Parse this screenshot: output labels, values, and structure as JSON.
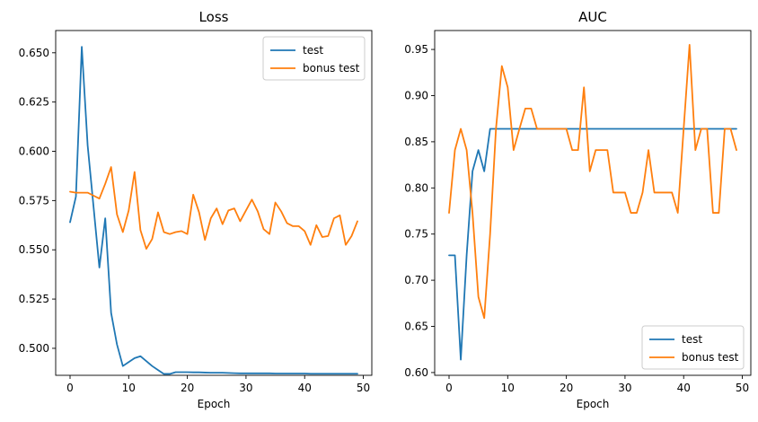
{
  "chart_data": [
    {
      "type": "line",
      "title": "Loss",
      "xlabel": "Epoch",
      "ylabel": "",
      "xlim": [
        -2.45,
        51.45
      ],
      "ylim": [
        0.4863,
        0.6613
      ],
      "xticks": [
        0,
        10,
        20,
        30,
        40,
        50
      ],
      "yticks": [
        0.5,
        0.525,
        0.55,
        0.575,
        0.6,
        0.625,
        0.65
      ],
      "ytick_labels": [
        "0.500",
        "0.525",
        "0.550",
        "0.575",
        "0.600",
        "0.625",
        "0.650"
      ],
      "legend": "top-right",
      "x": [
        0,
        1,
        2,
        3,
        4,
        5,
        6,
        7,
        8,
        9,
        10,
        11,
        12,
        13,
        14,
        15,
        16,
        17,
        18,
        19,
        20,
        21,
        22,
        23,
        24,
        25,
        26,
        27,
        28,
        29,
        30,
        31,
        32,
        33,
        34,
        35,
        36,
        37,
        38,
        39,
        40,
        41,
        42,
        43,
        44,
        45,
        46,
        47,
        48,
        49
      ],
      "series": [
        {
          "name": "test",
          "color": "#1f77b4",
          "values": [
            0.564,
            0.577,
            0.653,
            0.603,
            0.572,
            0.541,
            0.566,
            0.518,
            0.502,
            0.491,
            0.493,
            0.495,
            0.496,
            0.4935,
            0.491,
            0.489,
            0.487,
            0.487,
            0.4879,
            0.4879,
            0.4879,
            0.4878,
            0.4878,
            0.4877,
            0.4876,
            0.4876,
            0.4876,
            0.4875,
            0.4874,
            0.4873,
            0.4873,
            0.4873,
            0.4873,
            0.4873,
            0.4873,
            0.4872,
            0.4872,
            0.4872,
            0.4872,
            0.4872,
            0.4872,
            0.4871,
            0.4871,
            0.4871,
            0.4871,
            0.4871,
            0.4871,
            0.4871,
            0.4871,
            0.4871
          ]
        },
        {
          "name": "bonus test",
          "color": "#ff7f0e",
          "values": [
            0.5795,
            0.579,
            0.579,
            0.579,
            0.5775,
            0.576,
            0.5835,
            0.592,
            0.568,
            0.559,
            0.57,
            0.5895,
            0.56,
            0.5505,
            0.5555,
            0.569,
            0.559,
            0.558,
            0.559,
            0.5595,
            0.558,
            0.578,
            0.569,
            0.555,
            0.566,
            0.571,
            0.563,
            0.57,
            0.571,
            0.5645,
            0.57,
            0.5755,
            0.5695,
            0.5605,
            0.558,
            0.574,
            0.5695,
            0.5635,
            0.562,
            0.562,
            0.5595,
            0.5525,
            0.5625,
            0.5565,
            0.557,
            0.566,
            0.5675,
            0.5525,
            0.557,
            0.5645
          ]
        }
      ]
    },
    {
      "type": "line",
      "title": "AUC",
      "xlabel": "Epoch",
      "ylabel": "",
      "xlim": [
        -2.45,
        51.45
      ],
      "ylim": [
        0.597,
        0.9705
      ],
      "xticks": [
        0,
        10,
        20,
        30,
        40,
        50
      ],
      "yticks": [
        0.6,
        0.65,
        0.7,
        0.75,
        0.8,
        0.85,
        0.9,
        0.95
      ],
      "ytick_labels": [
        "0.60",
        "0.65",
        "0.70",
        "0.75",
        "0.80",
        "0.85",
        "0.90",
        "0.95"
      ],
      "legend": "bottom-right",
      "x": [
        0,
        1,
        2,
        3,
        4,
        5,
        6,
        7,
        8,
        9,
        10,
        11,
        12,
        13,
        14,
        15,
        16,
        17,
        18,
        19,
        20,
        21,
        22,
        23,
        24,
        25,
        26,
        27,
        28,
        29,
        30,
        31,
        32,
        33,
        34,
        35,
        36,
        37,
        38,
        39,
        40,
        41,
        42,
        43,
        44,
        45,
        46,
        47,
        48,
        49
      ],
      "series": [
        {
          "name": "test",
          "color": "#1f77b4",
          "values": [
            0.727,
            0.727,
            0.614,
            0.727,
            0.818,
            0.841,
            0.818,
            0.864,
            0.864,
            0.864,
            0.864,
            0.864,
            0.864,
            0.864,
            0.864,
            0.864,
            0.864,
            0.864,
            0.864,
            0.864,
            0.864,
            0.864,
            0.864,
            0.864,
            0.864,
            0.864,
            0.864,
            0.864,
            0.864,
            0.864,
            0.864,
            0.864,
            0.864,
            0.864,
            0.864,
            0.864,
            0.864,
            0.864,
            0.864,
            0.864,
            0.864,
            0.864,
            0.864,
            0.864,
            0.864,
            0.864,
            0.864,
            0.864,
            0.864,
            0.864
          ]
        },
        {
          "name": "bonus test",
          "color": "#ff7f0e",
          "values": [
            0.773,
            0.841,
            0.864,
            0.841,
            0.773,
            0.682,
            0.659,
            0.75,
            0.864,
            0.932,
            0.909,
            0.841,
            0.864,
            0.886,
            0.886,
            0.864,
            0.864,
            0.864,
            0.864,
            0.864,
            0.864,
            0.841,
            0.841,
            0.909,
            0.818,
            0.841,
            0.841,
            0.841,
            0.795,
            0.795,
            0.795,
            0.773,
            0.773,
            0.795,
            0.841,
            0.795,
            0.795,
            0.795,
            0.795,
            0.773,
            0.864,
            0.955,
            0.841,
            0.864,
            0.864,
            0.773,
            0.773,
            0.864,
            0.864,
            0.841
          ]
        }
      ]
    }
  ]
}
